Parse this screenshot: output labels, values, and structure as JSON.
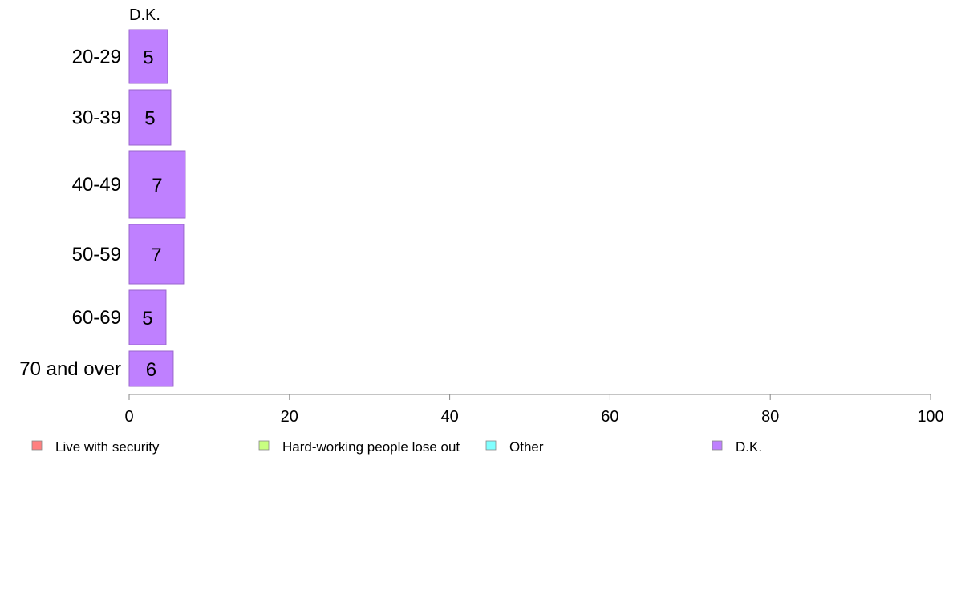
{
  "chart_data": {
    "type": "bar",
    "orientation": "horizontal",
    "stacked": true,
    "panel_title": "D.K.",
    "categories": [
      "20-29",
      "30-39",
      "40-49",
      "50-59",
      "60-69",
      "70 and over"
    ],
    "series": [
      {
        "name": "D.K.",
        "color": "#bf80ff",
        "values": [
          4.8,
          5.2,
          7.0,
          6.8,
          4.6,
          5.5
        ],
        "labels": [
          "5",
          "5",
          "7",
          "7",
          "5",
          "6"
        ]
      }
    ],
    "xlim": [
      0,
      100
    ],
    "xticks": [
      "0",
      "20",
      "40",
      "60",
      "80",
      "100"
    ],
    "xtick_values": [
      0,
      20,
      40,
      60,
      80,
      100
    ],
    "grid": false,
    "legend_position": "bottom",
    "legend": [
      {
        "label": "Live with security",
        "color": "#ff8080"
      },
      {
        "label": "Hard-working people lose out",
        "color": "#c8ff80"
      },
      {
        "label": "Other",
        "color": "#80ffff"
      },
      {
        "label": "D.K.",
        "color": "#bf80ff"
      }
    ]
  }
}
